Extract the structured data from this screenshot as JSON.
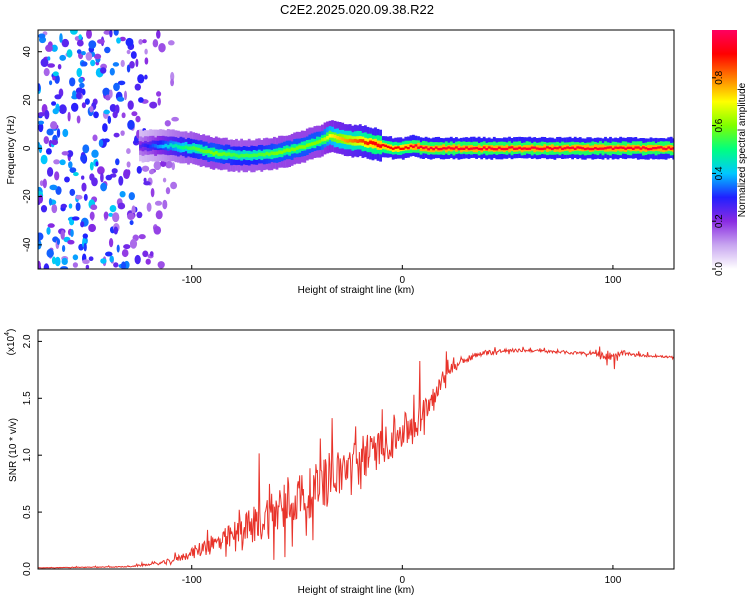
{
  "title": "C2E2.2025.020.09.38.R22",
  "chart_data": [
    {
      "type": "heatmap",
      "xlabel": "Height of straight line (km)",
      "ylabel": "Frequency (Hz)",
      "xlim": [
        -173,
        129
      ],
      "ylim": [
        -50,
        49
      ],
      "x_ticks": [
        -100,
        0,
        100
      ],
      "y_ticks": [
        -40,
        -20,
        0,
        20,
        40
      ],
      "colorbar": {
        "label": "Normalized spectral amplitude",
        "range": [
          0.0,
          1.0
        ],
        "ticks": [
          0.0,
          0.2,
          0.4,
          0.6,
          0.8
        ],
        "colors": [
          "#ffffff",
          "#c8a6f0",
          "#8a2be2",
          "#2020ff",
          "#00c8ff",
          "#00ff80",
          "#7fff00",
          "#ffff00",
          "#ff8000",
          "#ff0000",
          "#ff0060"
        ]
      },
      "noise_region_x": [
        -173,
        -105
      ],
      "ridge": {
        "x": [
          -125,
          -110,
          -100,
          -90,
          -80,
          -70,
          -60,
          -50,
          -40,
          -35,
          -30,
          -25,
          -20,
          -15,
          -10,
          -5,
          0,
          5,
          10,
          20,
          40,
          60,
          80,
          100,
          129
        ],
        "freq": [
          1,
          1,
          0,
          -2,
          -3,
          -3,
          -2,
          0,
          3,
          5,
          4,
          3,
          3,
          2,
          1,
          0,
          0,
          1,
          0,
          0,
          0,
          0,
          0,
          0,
          0
        ],
        "amplitude": [
          0.25,
          0.45,
          0.55,
          0.6,
          0.55,
          0.55,
          0.6,
          0.6,
          0.6,
          0.7,
          0.75,
          0.8,
          0.85,
          0.9,
          0.92,
          0.9,
          0.9,
          0.95,
          0.95,
          0.95,
          0.95,
          0.95,
          0.95,
          0.95,
          0.95
        ]
      }
    },
    {
      "type": "line",
      "xlabel": "Height of straight line (km)",
      "ylabel": "SNR (10 * v/v)",
      "y_multiplier_label": "(x10",
      "y_multiplier_exp": "4",
      "xlim": [
        -173,
        129
      ],
      "ylim": [
        0,
        2.1
      ],
      "x_ticks": [
        -100,
        0,
        100
      ],
      "y_ticks": [
        0.0,
        0.5,
        1.0,
        1.5,
        2.0
      ],
      "y_tick_labels": [
        "0.0",
        "0.5",
        "1.0",
        "1.5",
        "2.0"
      ],
      "line_color": "#e8332a",
      "series": [
        {
          "x": [
            -173,
            -130,
            -115,
            -105,
            -95,
            -85,
            -75,
            -65,
            -58,
            -52,
            -45,
            -38,
            -30,
            -22,
            -15,
            -8,
            0,
            8,
            15,
            22,
            30,
            40,
            50,
            60,
            70,
            80,
            90,
            95,
            100,
            105,
            110,
            120,
            129
          ],
          "mean": [
            0.01,
            0.02,
            0.05,
            0.1,
            0.18,
            0.25,
            0.35,
            0.45,
            0.55,
            0.62,
            0.65,
            0.75,
            0.85,
            0.95,
            1.0,
            1.1,
            1.2,
            1.3,
            1.55,
            1.75,
            1.85,
            1.9,
            1.92,
            1.92,
            1.91,
            1.9,
            1.9,
            1.88,
            1.85,
            1.9,
            1.88,
            1.87,
            1.86
          ],
          "spread": [
            0.003,
            0.01,
            0.03,
            0.08,
            0.18,
            0.25,
            0.35,
            0.5,
            0.6,
            0.6,
            0.55,
            0.55,
            0.5,
            0.45,
            0.45,
            0.4,
            0.4,
            0.4,
            0.25,
            0.12,
            0.08,
            0.06,
            0.04,
            0.03,
            0.03,
            0.03,
            0.04,
            0.06,
            0.15,
            0.05,
            0.03,
            0.02,
            0.02
          ]
        }
      ]
    }
  ]
}
